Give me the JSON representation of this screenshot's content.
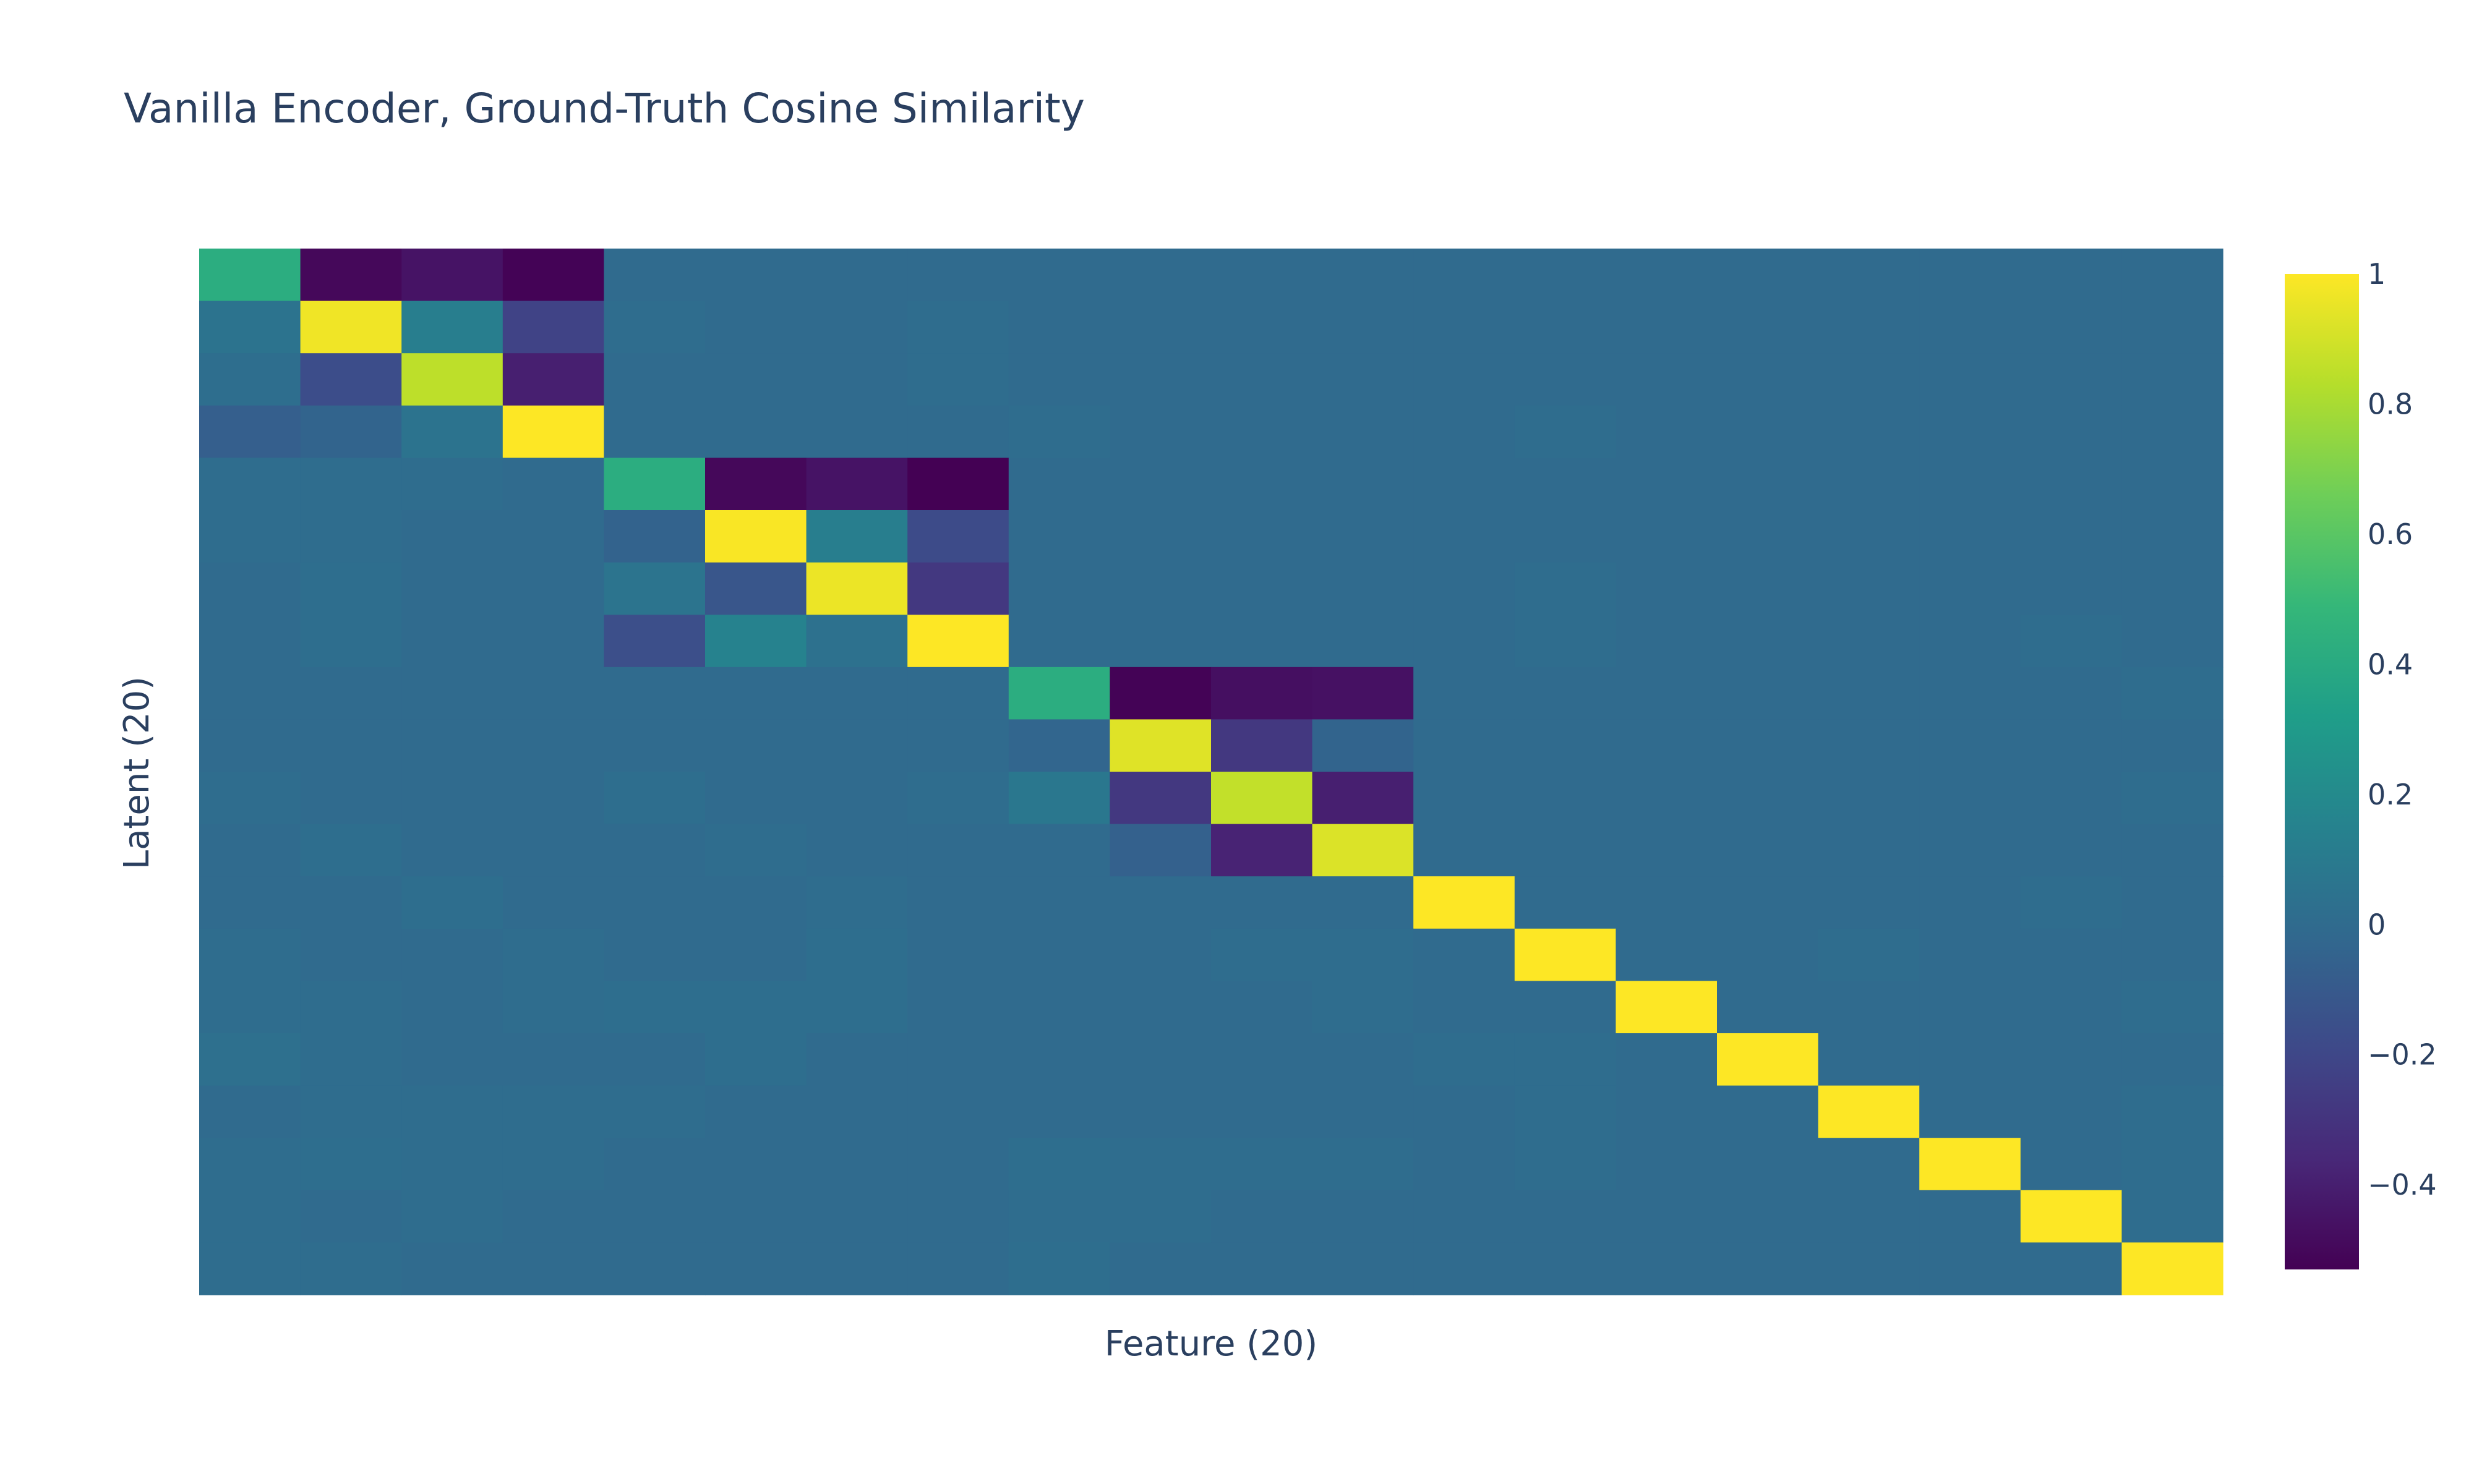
{
  "chart_data": {
    "type": "heatmap",
    "title": "Vanilla Encoder, Ground-Truth Cosine Similarity",
    "xlabel": "Feature (20)",
    "ylabel": "Latent (20)",
    "colorscale": "viridis",
    "zmin": -0.53,
    "zmax": 1.0,
    "colorbar_ticks": [
      {
        "value": 1,
        "label": "1"
      },
      {
        "value": 0.8,
        "label": "0.8"
      },
      {
        "value": 0.6,
        "label": "0.6"
      },
      {
        "value": 0.4,
        "label": "0.4"
      },
      {
        "value": 0.2,
        "label": "0.2"
      },
      {
        "value": 0,
        "label": "0"
      },
      {
        "value": -0.2,
        "label": "−0.2"
      },
      {
        "value": -0.4,
        "label": "−0.4"
      }
    ],
    "z": [
      [
        0.42,
        -0.5,
        -0.45,
        -0.52,
        0,
        0,
        0,
        0,
        0,
        0,
        0,
        0,
        0,
        0,
        0,
        0,
        0,
        0,
        0,
        0
      ],
      [
        0.05,
        0.97,
        0.12,
        -0.22,
        0.01,
        0,
        0,
        0.01,
        0,
        0,
        0,
        0,
        0,
        0,
        0,
        0,
        0,
        0,
        0,
        0
      ],
      [
        0.02,
        -0.17,
        0.85,
        -0.4,
        0,
        0,
        0,
        0.01,
        0,
        0,
        0,
        0,
        0,
        0,
        0,
        0,
        0,
        0,
        0,
        0
      ],
      [
        -0.07,
        -0.04,
        0.05,
        1.0,
        0,
        0,
        0,
        0,
        0.01,
        0,
        0,
        0,
        0,
        0.01,
        0,
        0,
        0,
        0,
        0,
        0
      ],
      [
        0.01,
        0.01,
        0.01,
        0,
        0.42,
        -0.5,
        -0.45,
        -0.53,
        0,
        0,
        0,
        0,
        0,
        0,
        0,
        0,
        0,
        0,
        0,
        0
      ],
      [
        0.01,
        0.01,
        0,
        0,
        -0.05,
        0.99,
        0.12,
        -0.18,
        0,
        0,
        0,
        0,
        0,
        0,
        0,
        0,
        0,
        0,
        0,
        0
      ],
      [
        0,
        0.02,
        0,
        0,
        0.06,
        -0.12,
        0.96,
        -0.28,
        0,
        0,
        0,
        0,
        0,
        0.01,
        0,
        0,
        0,
        0,
        0,
        0
      ],
      [
        0,
        0.02,
        0,
        0,
        -0.16,
        0.15,
        0.04,
        1.0,
        0,
        0,
        0,
        0,
        0,
        0.01,
        0,
        0,
        0,
        0,
        0.01,
        0
      ],
      [
        0,
        0,
        0,
        0,
        0,
        0,
        0,
        0,
        0.42,
        -0.52,
        -0.47,
        -0.46,
        0,
        0,
        0,
        0,
        0,
        0,
        0,
        0.01
      ],
      [
        0,
        0,
        0,
        0,
        0,
        0,
        0,
        0,
        -0.03,
        0.93,
        -0.28,
        -0.04,
        0,
        0,
        0,
        0,
        0,
        0,
        0,
        0
      ],
      [
        0.01,
        0,
        0,
        0,
        0.02,
        0,
        0,
        0.01,
        0.08,
        -0.28,
        0.86,
        -0.4,
        0,
        0,
        0,
        0,
        0,
        0,
        0,
        0.01
      ],
      [
        0,
        0.02,
        0,
        0,
        0,
        0.01,
        0,
        0,
        0,
        -0.06,
        -0.38,
        0.92,
        0,
        0,
        0,
        0,
        0,
        0,
        0,
        0
      ],
      [
        0,
        0,
        0.02,
        0,
        0,
        0,
        0.01,
        0,
        0,
        0,
        0,
        0,
        1.0,
        0,
        0,
        0,
        0,
        0,
        0.01,
        0
      ],
      [
        0.01,
        0,
        0,
        0.01,
        0,
        0,
        0.02,
        0,
        0,
        0,
        0.01,
        0.01,
        0,
        1.0,
        0,
        0,
        0.01,
        0,
        0,
        0
      ],
      [
        0.01,
        0.01,
        0,
        0.01,
        0.02,
        0.02,
        0.02,
        0,
        0,
        0,
        0,
        0.01,
        0,
        0,
        1.0,
        0,
        0,
        0,
        0,
        0.01
      ],
      [
        0.03,
        0.01,
        0,
        0,
        0,
        0.02,
        0,
        0,
        0,
        0,
        0,
        0,
        0.01,
        0.01,
        0,
        1.0,
        0,
        0,
        0,
        0
      ],
      [
        0,
        0.01,
        0.01,
        0.01,
        0.01,
        0,
        0,
        0,
        0,
        0,
        0,
        0,
        0,
        0.01,
        0,
        0,
        1.0,
        0,
        0,
        0.01
      ],
      [
        0.01,
        0.02,
        0.01,
        0.01,
        0,
        0,
        0,
        0,
        0.02,
        0.01,
        0.01,
        0.01,
        0,
        0.01,
        0,
        0,
        0,
        1.0,
        0,
        0.01
      ],
      [
        0.01,
        0,
        0.01,
        0,
        0,
        0,
        0,
        0,
        0.01,
        0.01,
        0,
        0,
        0,
        0,
        0,
        0,
        0,
        0,
        1.0,
        0.01
      ],
      [
        0.01,
        0.01,
        0,
        0,
        0,
        0,
        0,
        0,
        0.02,
        0,
        0,
        0,
        0,
        0,
        0,
        0,
        0,
        0,
        0,
        1.0
      ]
    ]
  }
}
